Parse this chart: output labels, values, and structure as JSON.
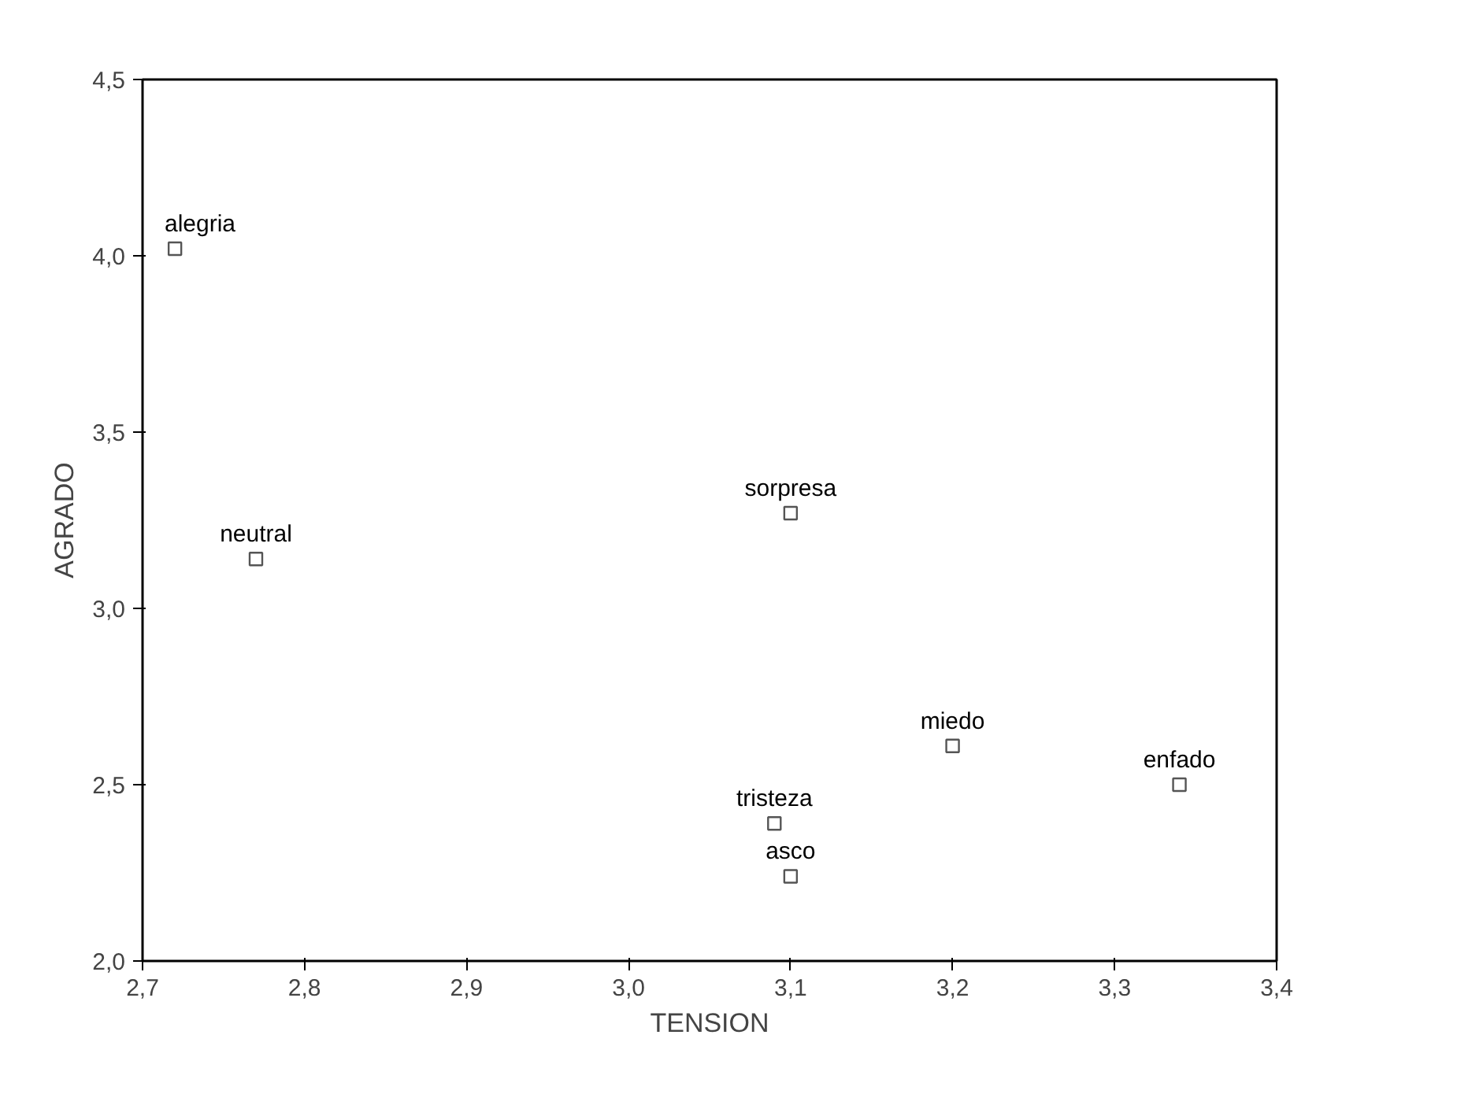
{
  "chart_data": {
    "type": "scatter",
    "xlabel": "TENSION",
    "ylabel": "AGRADO",
    "x": [
      2.72,
      2.77,
      3.1,
      3.2,
      3.34,
      3.09,
      3.1
    ],
    "values": [
      4.02,
      3.14,
      3.27,
      2.61,
      2.5,
      2.39,
      2.24
    ],
    "color": "#555555",
    "marker": "square",
    "grid": false,
    "xlim": [
      2.7,
      3.4
    ],
    "ylim": [
      2.0,
      4.5
    ],
    "xticks": [
      {
        "value": 2.7,
        "label": "2,7"
      },
      {
        "value": 2.8,
        "label": "2,8"
      },
      {
        "value": 2.9,
        "label": "2,9"
      },
      {
        "value": 3.0,
        "label": "3,0"
      },
      {
        "value": 3.1,
        "label": "3,1"
      },
      {
        "value": 3.2,
        "label": "3,2"
      },
      {
        "value": 3.3,
        "label": "3,3"
      },
      {
        "value": 3.4,
        "label": "3,4"
      }
    ],
    "yticks": [
      {
        "value": 2.0,
        "label": "2,0"
      },
      {
        "value": 2.5,
        "label": "2,5"
      },
      {
        "value": 3.0,
        "label": "3,0"
      },
      {
        "value": 3.5,
        "label": "3,5"
      },
      {
        "value": 4.0,
        "label": "4,0"
      },
      {
        "value": 4.5,
        "label": "4,5"
      }
    ],
    "annotations": [
      {
        "text": "alegria",
        "x": 2.72,
        "y": 4.02
      },
      {
        "text": "neutral",
        "x": 2.77,
        "y": 3.14
      },
      {
        "text": "sorpresa",
        "x": 3.1,
        "y": 3.27
      },
      {
        "text": "miedo",
        "x": 3.2,
        "y": 2.61
      },
      {
        "text": "enfado",
        "x": 3.34,
        "y": 2.5
      },
      {
        "text": "tristeza",
        "x": 3.09,
        "y": 2.39
      },
      {
        "text": "asco",
        "x": 3.1,
        "y": 2.24
      }
    ]
  }
}
